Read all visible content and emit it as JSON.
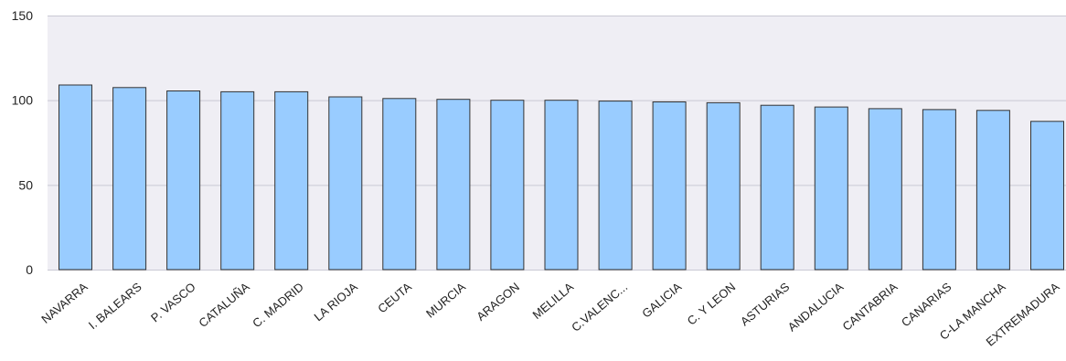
{
  "chart_data": {
    "type": "bar",
    "categories": [
      "NAVARRA",
      "I. BALEARS",
      "P. VASCO",
      "CATALUÑA",
      "C. MADRID",
      "LA RIOJA",
      "CEUTA",
      "MURCIA",
      "ARAGON",
      "MELILLA",
      "C.VALENC...",
      "GALICIA",
      "C. Y LEON",
      "ASTURIAS",
      "ANDALUCIA",
      "CANTABRIA",
      "CANARIAS",
      "C-LA MANCHA",
      "EXTREMADURA"
    ],
    "values": [
      109,
      107.5,
      105.5,
      105,
      105,
      102,
      101,
      100.5,
      100,
      100,
      99.5,
      99,
      98.5,
      97,
      96,
      95,
      94.5,
      94,
      87.5
    ],
    "title": "",
    "xlabel": "",
    "ylabel": "",
    "ylim": [
      0,
      150
    ],
    "yticks": [
      "0",
      "50",
      "100",
      "150"
    ],
    "grid": true,
    "colors": {
      "bar_fill": "#99ccff",
      "bar_stroke": "#333333",
      "plot_background": "#efeef4",
      "gridline": "#c9c9d4"
    }
  }
}
